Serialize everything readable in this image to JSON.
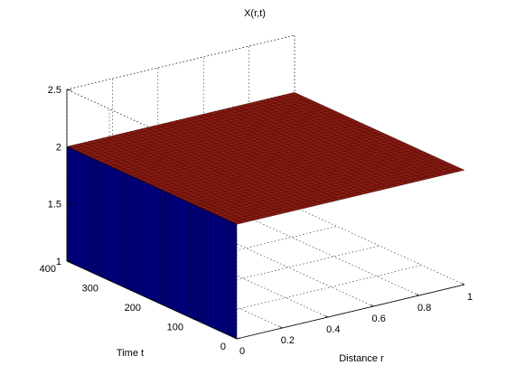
{
  "chart_data": {
    "type": "surface",
    "title": "X(r,t)",
    "xlabel": "Distance r",
    "ylabel": "Time t",
    "zlabel": "",
    "xlim": [
      0,
      1
    ],
    "ylim": [
      0,
      400
    ],
    "zlim": [
      1,
      2.5
    ],
    "x_ticks": [
      "0",
      "0.2",
      "0.4",
      "0.6",
      "0.8",
      "1"
    ],
    "y_ticks": [
      "0",
      "100",
      "200",
      "300",
      "400"
    ],
    "z_ticks": [
      "1",
      "1.5",
      "2",
      "2.5"
    ],
    "grid": true,
    "series": [
      {
        "surface": "plateau",
        "r_range": [
          0,
          1
        ],
        "t_range": [
          0,
          400
        ],
        "value": 2.0,
        "color": "#8b1a10"
      },
      {
        "surface": "boundary wall at r = 0",
        "r": 0,
        "t_range": [
          0,
          400
        ],
        "value_range": [
          1.0,
          2.0
        ],
        "color": "#00007a"
      }
    ]
  }
}
